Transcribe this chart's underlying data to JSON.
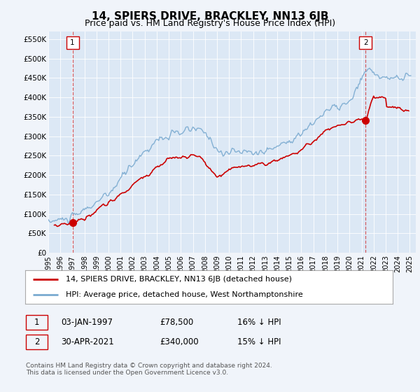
{
  "title": "14, SPIERS DRIVE, BRACKLEY, NN13 6JB",
  "subtitle": "Price paid vs. HM Land Registry's House Price Index (HPI)",
  "title_fontsize": 11,
  "subtitle_fontsize": 9,
  "ylabel_ticks": [
    "£0",
    "£50K",
    "£100K",
    "£150K",
    "£200K",
    "£250K",
    "£300K",
    "£350K",
    "£400K",
    "£450K",
    "£500K",
    "£550K"
  ],
  "ytick_values": [
    0,
    50000,
    100000,
    150000,
    200000,
    250000,
    300000,
    350000,
    400000,
    450000,
    500000,
    550000
  ],
  "ylim": [
    0,
    570000
  ],
  "xlim_start": 1995.0,
  "xlim_end": 2025.5,
  "xtick_years": [
    1995,
    1996,
    1997,
    1998,
    1999,
    2000,
    2001,
    2002,
    2003,
    2004,
    2005,
    2006,
    2007,
    2008,
    2009,
    2010,
    2011,
    2012,
    2013,
    2014,
    2015,
    2016,
    2017,
    2018,
    2019,
    2020,
    2021,
    2022,
    2023,
    2024,
    2025
  ],
  "point1_x": 1997.01,
  "point1_y": 78500,
  "point1_label": "1",
  "point2_x": 2021.33,
  "point2_y": 340000,
  "point2_label": "2",
  "vline_color": "#cc0000",
  "vline_style": "--",
  "vline_alpha": 0.6,
  "hpi_color": "#7aaad0",
  "price_color": "#cc0000",
  "legend_label_red": "14, SPIERS DRIVE, BRACKLEY, NN13 6JB (detached house)",
  "legend_label_blue": "HPI: Average price, detached house, West Northamptonshire",
  "footer": "Contains HM Land Registry data © Crown copyright and database right 2024.\nThis data is licensed under the Open Government Licence v3.0.",
  "bg_color": "#f0f4fa",
  "plot_bg_color": "#dce8f5"
}
